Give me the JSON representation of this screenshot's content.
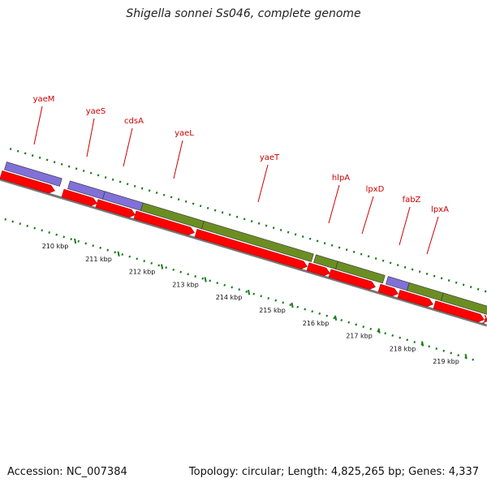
{
  "title": "Shigella sonnei Ss046, complete genome",
  "footer": {
    "accession": "Accession: NC_007384",
    "summary": "Topology: circular; Length: 4,825,265 bp; Genes: 4,337"
  },
  "colors": {
    "cds_forward": "#8070d8",
    "cds_forward_alt": "#6b8e23",
    "cds_reverse": "#ff0000",
    "backbone": "#777777",
    "tick": "#1a7a1a",
    "gene_label": "#cc0000"
  },
  "genes": [
    {
      "name": "yaeM",
      "type": "cds_forward"
    },
    {
      "name": "yaeS",
      "type": "cds_forward"
    },
    {
      "name": "cdsA",
      "type": "cds_forward"
    },
    {
      "name": "yaeL",
      "type": "cds_forward_alt"
    },
    {
      "name": "yaeT",
      "type": "cds_forward_alt"
    },
    {
      "name": "hlpA",
      "type": "cds_forward_alt"
    },
    {
      "name": "lpxD",
      "type": "cds_forward_alt"
    },
    {
      "name": "fabZ",
      "type": "cds_forward"
    },
    {
      "name": "lpxA",
      "type": "cds_forward_alt"
    }
  ],
  "scale_labels": [
    "210 kbp",
    "211 kbp",
    "212 kbp",
    "213 kbp",
    "214 kbp",
    "215 kbp",
    "216 kbp",
    "217 kbp",
    "218 kbp",
    "219 kbp"
  ]
}
